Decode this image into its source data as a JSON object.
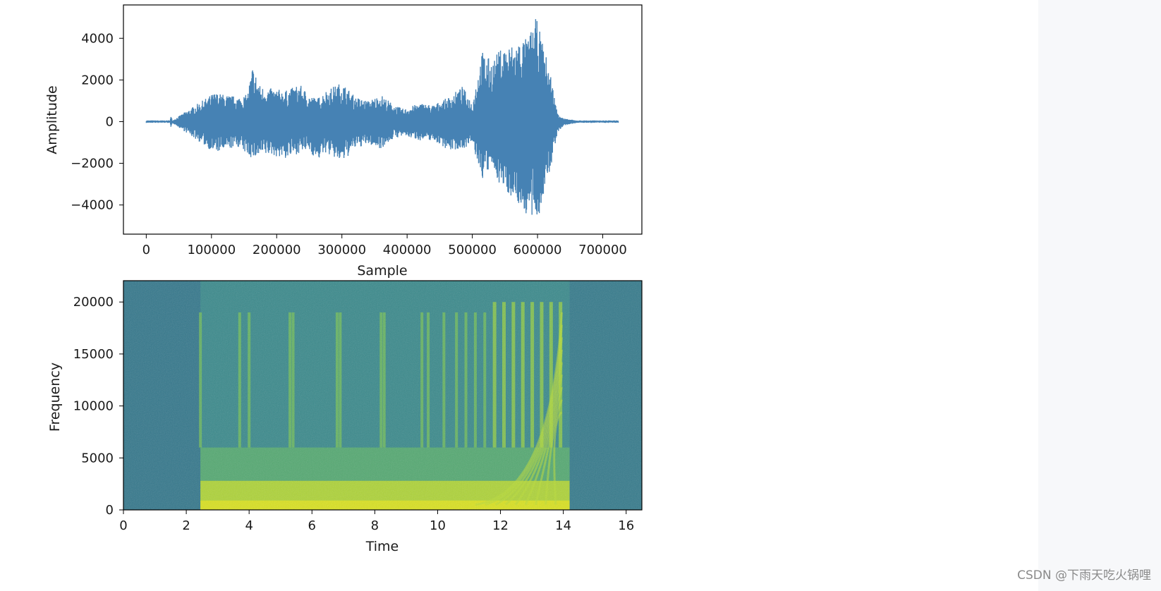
{
  "watermark": "CSDN @下雨天吃火锅哩",
  "chart_data": [
    {
      "type": "line",
      "xlabel": "Sample",
      "ylabel": "Amplitude",
      "xlim": [
        -35000,
        760000
      ],
      "ylim": [
        -5400,
        5600
      ],
      "xticks": [
        0,
        100000,
        200000,
        300000,
        400000,
        500000,
        600000,
        700000
      ],
      "xtick_labels": [
        "0",
        "100000",
        "200000",
        "300000",
        "400000",
        "500000",
        "600000",
        "700000"
      ],
      "yticks": [
        4000,
        2000,
        0,
        -2000,
        -4000
      ],
      "ytick_labels": [
        "4000",
        "2000",
        "0",
        "−2000",
        "−4000"
      ],
      "grid": false,
      "color": "#4682b4",
      "series": [
        {
          "x": [
            0,
            36000,
            38000,
            40000,
            105000,
            120000,
            140000,
            155000,
            163000,
            175000,
            190000,
            215000,
            235000,
            250000,
            262000,
            275000,
            300000,
            320000,
            340000,
            360000,
            380000,
            395000,
            420000,
            440000,
            465000,
            485000,
            500000,
            515000,
            530000,
            545000,
            560000,
            575000,
            585000,
            598000,
            608000,
            620000,
            630000,
            640000,
            660000,
            724000
          ],
          "upper": [
            60,
            60,
            280,
            60,
            1400,
            1300,
            1200,
            1300,
            2700,
            1700,
            1600,
            1500,
            1800,
            1300,
            1100,
            1500,
            1900,
            1200,
            1000,
            1300,
            800,
            600,
            900,
            800,
            1200,
            1700,
            900,
            3400,
            2900,
            3600,
            3700,
            4000,
            4000,
            5000,
            3800,
            2300,
            500,
            150,
            60,
            60
          ],
          "lower": [
            -60,
            -60,
            -380,
            -60,
            -1500,
            -1400,
            -1200,
            -1600,
            -1800,
            -1700,
            -1600,
            -1800,
            -1500,
            -1400,
            -1900,
            -1500,
            -2000,
            -1300,
            -1100,
            -1300,
            -800,
            -700,
            -900,
            -900,
            -1400,
            -1300,
            -1100,
            -2800,
            -2200,
            -3200,
            -3600,
            -4200,
            -4600,
            -5000,
            -3800,
            -2300,
            -600,
            -200,
            -60,
            -60
          ]
        }
      ]
    },
    {
      "type": "heatmap",
      "xlabel": "Time",
      "ylabel": "Frequency",
      "xlim": [
        0,
        16.5
      ],
      "ylim": [
        0,
        22050
      ],
      "xticks": [
        0,
        2,
        4,
        6,
        8,
        10,
        12,
        14,
        16
      ],
      "xtick_labels": [
        "0",
        "2",
        "4",
        "6",
        "8",
        "10",
        "12",
        "14",
        "16"
      ],
      "yticks": [
        20000,
        15000,
        10000,
        5000,
        0
      ],
      "ytick_labels": [
        "20000",
        "15000",
        "10000",
        "5000",
        "0"
      ],
      "colormap": "viridis",
      "onset_time": 2.45,
      "end_time": 14.2,
      "vertical_bursts": [
        2.45,
        3.7,
        4.0,
        5.3,
        5.4,
        6.8,
        6.9,
        8.2,
        8.3,
        9.5,
        9.7,
        10.2,
        10.6,
        10.9,
        11.2,
        11.5,
        11.8,
        12.1,
        12.4,
        12.7,
        13.0,
        13.3,
        13.6,
        13.9
      ]
    }
  ]
}
